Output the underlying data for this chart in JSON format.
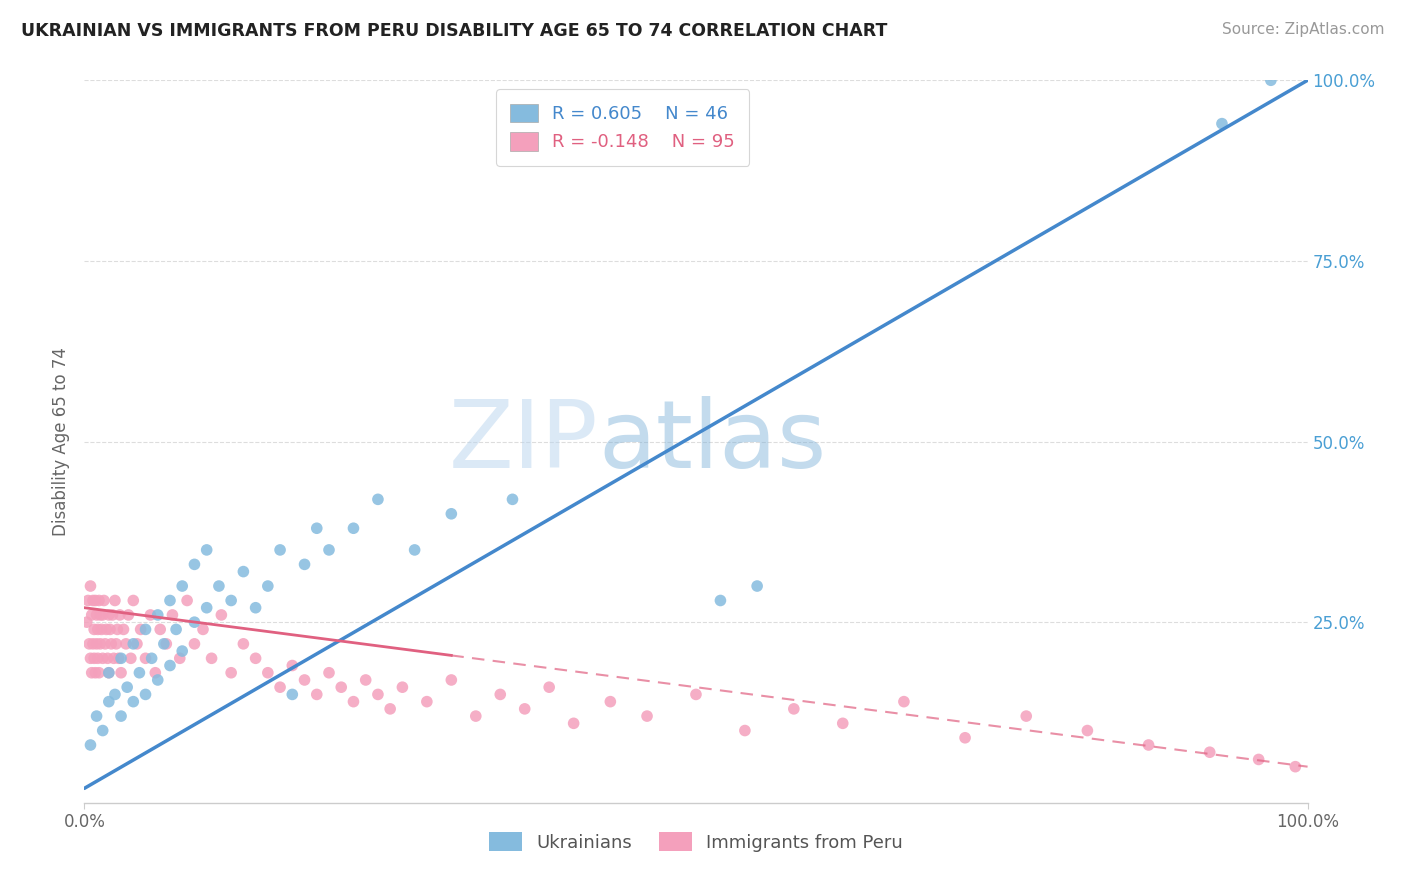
{
  "title": "UKRAINIAN VS IMMIGRANTS FROM PERU DISABILITY AGE 65 TO 74 CORRELATION CHART",
  "source": "Source: ZipAtlas.com",
  "ylabel": "Disability Age 65 to 74",
  "legend_labels": [
    "Ukrainians",
    "Immigrants from Peru"
  ],
  "legend_r": [
    "R = 0.605",
    "N = 46"
  ],
  "legend_n": [
    "R = -0.148",
    "N = 95"
  ],
  "blue_color": "#85bbde",
  "pink_color": "#f4a0bc",
  "blue_line_color": "#4488cc",
  "pink_line_color": "#e06080",
  "background_color": "#ffffff",
  "watermark_zip": "ZIP",
  "watermark_atlas": "atlas",
  "xlim": [
    0.0,
    1.0
  ],
  "ylim": [
    0.0,
    1.0
  ],
  "blue_scatter_x": [
    0.005,
    0.01,
    0.015,
    0.02,
    0.02,
    0.025,
    0.03,
    0.03,
    0.035,
    0.04,
    0.04,
    0.045,
    0.05,
    0.05,
    0.055,
    0.06,
    0.06,
    0.065,
    0.07,
    0.07,
    0.075,
    0.08,
    0.08,
    0.09,
    0.09,
    0.1,
    0.1,
    0.11,
    0.12,
    0.13,
    0.14,
    0.15,
    0.16,
    0.17,
    0.18,
    0.19,
    0.2,
    0.22,
    0.24,
    0.27,
    0.3,
    0.35,
    0.52,
    0.55,
    0.93,
    0.97
  ],
  "blue_scatter_y": [
    0.08,
    0.12,
    0.1,
    0.14,
    0.18,
    0.15,
    0.12,
    0.2,
    0.16,
    0.14,
    0.22,
    0.18,
    0.15,
    0.24,
    0.2,
    0.17,
    0.26,
    0.22,
    0.19,
    0.28,
    0.24,
    0.21,
    0.3,
    0.25,
    0.33,
    0.27,
    0.35,
    0.3,
    0.28,
    0.32,
    0.27,
    0.3,
    0.35,
    0.15,
    0.33,
    0.38,
    0.35,
    0.38,
    0.42,
    0.35,
    0.4,
    0.42,
    0.28,
    0.3,
    0.94,
    1.0
  ],
  "pink_scatter_x": [
    0.002,
    0.003,
    0.004,
    0.005,
    0.005,
    0.006,
    0.006,
    0.007,
    0.007,
    0.008,
    0.008,
    0.009,
    0.009,
    0.01,
    0.01,
    0.011,
    0.011,
    0.012,
    0.012,
    0.013,
    0.013,
    0.014,
    0.015,
    0.015,
    0.016,
    0.017,
    0.018,
    0.019,
    0.02,
    0.02,
    0.021,
    0.022,
    0.023,
    0.024,
    0.025,
    0.026,
    0.027,
    0.028,
    0.029,
    0.03,
    0.032,
    0.034,
    0.036,
    0.038,
    0.04,
    0.043,
    0.046,
    0.05,
    0.054,
    0.058,
    0.062,
    0.067,
    0.072,
    0.078,
    0.084,
    0.09,
    0.097,
    0.104,
    0.112,
    0.12,
    0.13,
    0.14,
    0.15,
    0.16,
    0.17,
    0.18,
    0.19,
    0.2,
    0.21,
    0.22,
    0.23,
    0.24,
    0.25,
    0.26,
    0.28,
    0.3,
    0.32,
    0.34,
    0.36,
    0.38,
    0.4,
    0.43,
    0.46,
    0.5,
    0.54,
    0.58,
    0.62,
    0.67,
    0.72,
    0.77,
    0.82,
    0.87,
    0.92,
    0.96,
    0.99
  ],
  "pink_scatter_y": [
    0.25,
    0.28,
    0.22,
    0.3,
    0.2,
    0.26,
    0.18,
    0.28,
    0.22,
    0.24,
    0.2,
    0.28,
    0.18,
    0.26,
    0.22,
    0.24,
    0.2,
    0.28,
    0.18,
    0.26,
    0.22,
    0.24,
    0.26,
    0.2,
    0.28,
    0.22,
    0.24,
    0.2,
    0.26,
    0.18,
    0.24,
    0.22,
    0.26,
    0.2,
    0.28,
    0.22,
    0.24,
    0.2,
    0.26,
    0.18,
    0.24,
    0.22,
    0.26,
    0.2,
    0.28,
    0.22,
    0.24,
    0.2,
    0.26,
    0.18,
    0.24,
    0.22,
    0.26,
    0.2,
    0.28,
    0.22,
    0.24,
    0.2,
    0.26,
    0.18,
    0.22,
    0.2,
    0.18,
    0.16,
    0.19,
    0.17,
    0.15,
    0.18,
    0.16,
    0.14,
    0.17,
    0.15,
    0.13,
    0.16,
    0.14,
    0.17,
    0.12,
    0.15,
    0.13,
    0.16,
    0.11,
    0.14,
    0.12,
    0.15,
    0.1,
    0.13,
    0.11,
    0.14,
    0.09,
    0.12,
    0.1,
    0.08,
    0.07,
    0.06,
    0.05
  ],
  "blue_trend_x0": 0.0,
  "blue_trend_y0": 0.02,
  "blue_trend_x1": 1.0,
  "blue_trend_y1": 1.0,
  "pink_trend_x0": 0.0,
  "pink_trend_y0": 0.27,
  "pink_trend_x1": 1.0,
  "pink_trend_y1": 0.05
}
